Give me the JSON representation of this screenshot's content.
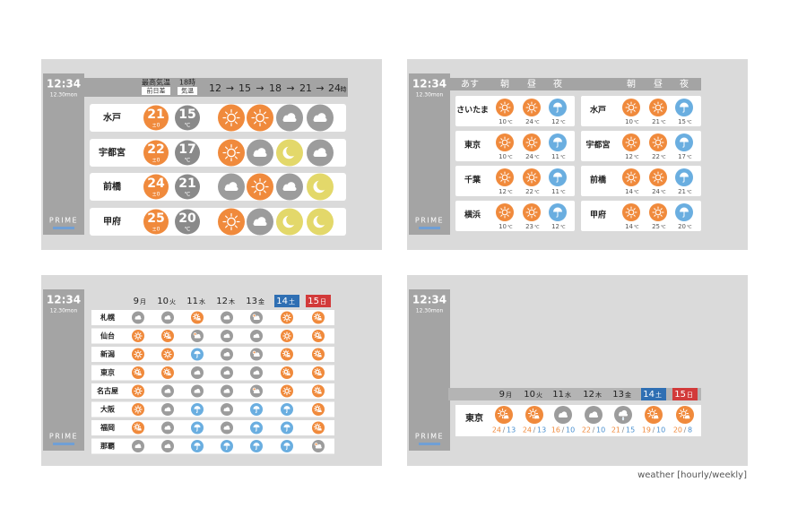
{
  "clock": {
    "time": "12:34",
    "date": "12.30mon"
  },
  "brand": "PRIME",
  "unit": "℃",
  "hourly": {
    "header": {
      "max_label": "最高気温",
      "max_sub": "前日差",
      "hour_label": "18時",
      "hour_sub": "気温",
      "times": [
        "12",
        "15",
        "18",
        "21",
        "24"
      ],
      "arrow": "→",
      "time_suffix": "時"
    },
    "rows": [
      {
        "city": "水戸",
        "max": 21,
        "diff": "±0",
        "temp": 15
      },
      {
        "city": "宇都宮",
        "max": 22,
        "diff": "±0",
        "temp": 17
      },
      {
        "city": "前橋",
        "max": 24,
        "diff": "±0",
        "temp": 21
      },
      {
        "city": "甲府",
        "max": 25,
        "diff": "±0",
        "temp": 20
      }
    ]
  },
  "tomorrow": {
    "header": {
      "label": "あす",
      "periods": [
        "朝",
        "昼",
        "夜"
      ]
    },
    "rows": [
      {
        "city": "さいたま",
        "temps": [
          10,
          24,
          12
        ]
      },
      {
        "city": "東京",
        "temps": [
          10,
          24,
          11
        ]
      },
      {
        "city": "千葉",
        "temps": [
          12,
          22,
          11
        ]
      },
      {
        "city": "横浜",
        "temps": [
          10,
          23,
          12
        ]
      },
      {
        "city": "水戸",
        "temps": [
          10,
          21,
          15
        ]
      },
      {
        "city": "宇都宮",
        "temps": [
          12,
          22,
          17
        ]
      },
      {
        "city": "前橋",
        "temps": [
          14,
          24,
          21
        ]
      },
      {
        "city": "甲府",
        "temps": [
          14,
          25,
          20
        ]
      }
    ]
  },
  "weekly": {
    "days": [
      "9",
      "10",
      "11",
      "12",
      "13",
      "14",
      "15"
    ],
    "weekdays": [
      "月",
      "火",
      "水",
      "木",
      "金",
      "土",
      "日"
    ],
    "cities": [
      "札幌",
      "仙台",
      "新潟",
      "東京",
      "名古屋",
      "大阪",
      "福岡",
      "那覇"
    ]
  },
  "tokyo_weekly": {
    "city": "東京",
    "highs": [
      24,
      24,
      16,
      22,
      21,
      19,
      20
    ],
    "lows": [
      13,
      13,
      10,
      10,
      15,
      10,
      8
    ],
    "separator": "/"
  },
  "caption": "weather [hourly/weekly]"
}
